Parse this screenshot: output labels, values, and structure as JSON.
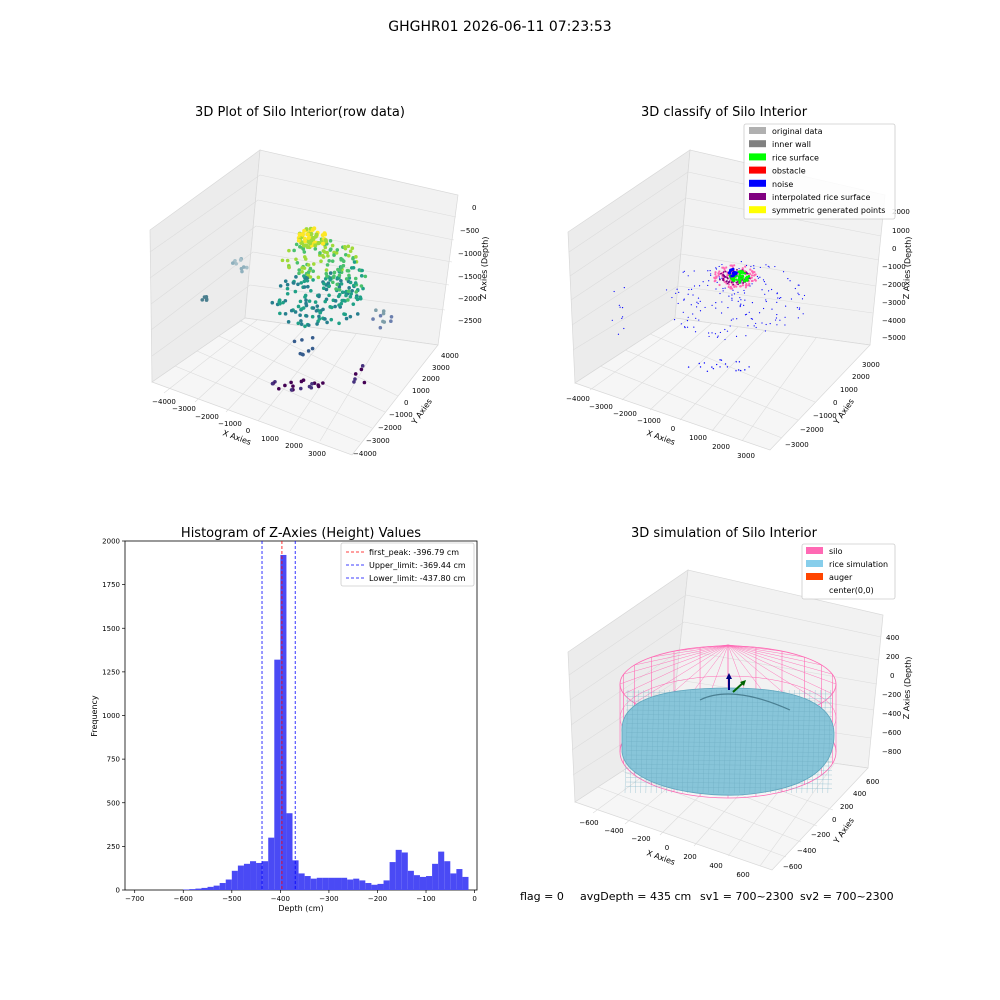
{
  "figure": {
    "suptitle": "GHGHR01 2026-06-11 07:23:53",
    "footer": {
      "flag": "flag = 0",
      "avg_depth": "avgDepth = 435 cm",
      "sv1": "sv1 = 700~2300",
      "sv2": "sv2 = 700~2300"
    }
  },
  "panels": {
    "raw": {
      "title": "3D Plot of Silo Interior(row data)",
      "xlabel": "X Axies",
      "ylabel": "Y Axies",
      "zlabel": "Z Axies (Depth)",
      "xticks": [
        "−4000",
        "−3000",
        "−2000",
        "−1000",
        "0",
        "1000",
        "2000",
        "3000"
      ],
      "yticks": [
        "−4000",
        "−3000",
        "−2000",
        "−1000",
        "0",
        "1000",
        "2000",
        "3000",
        "4000"
      ],
      "zticks": [
        "−2500",
        "−2000",
        "−1500",
        "−1000",
        "−500",
        "0"
      ]
    },
    "classify": {
      "title": "3D classify of Silo Interior",
      "xlabel": "X Axies",
      "ylabel": "Y Axies",
      "zlabel": "Z Axies (Depth)",
      "xticks": [
        "−4000",
        "−3000",
        "−2000",
        "−1000",
        "0",
        "1000",
        "2000",
        "3000"
      ],
      "yticks": [
        "−3000",
        "−2000",
        "−1000",
        "0",
        "1000",
        "2000",
        "3000"
      ],
      "zticks": [
        "−5000",
        "−4000",
        "−3000",
        "−2000",
        "−1000",
        "0",
        "1000",
        "2000"
      ],
      "legend": [
        {
          "label": "original data",
          "color": "#b0b0b0"
        },
        {
          "label": "inner wall",
          "color": "#808080"
        },
        {
          "label": "rice surface",
          "color": "#00ff00"
        },
        {
          "label": "obstacle",
          "color": "#ff0000"
        },
        {
          "label": "noise",
          "color": "#0000ff"
        },
        {
          "label": "interpolated rice surface",
          "color": "#800080"
        },
        {
          "label": "symmetric generated points",
          "color": "#ffff00"
        }
      ]
    },
    "histogram": {
      "title": "Histogram of Z-Axies (Height) Values",
      "xlabel": "Depth (cm)",
      "ylabel": "Frequency",
      "bar_color": "#4a4af5",
      "legend": [
        {
          "label": "first_peak: -396.79 cm",
          "color": "#ff0000"
        },
        {
          "label": "Upper_limit: -369.44 cm",
          "color": "#0000ff"
        },
        {
          "label": "Lower_limit: -437.80 cm",
          "color": "#0000ff"
        }
      ]
    },
    "simulation": {
      "title": "3D simulation of Silo Interior",
      "xlabel": "X Axies",
      "ylabel": "Y Axies",
      "zlabel": "Z Axies (Depth)",
      "xticks": [
        "−600",
        "−400",
        "−200",
        "0",
        "200",
        "400",
        "600"
      ],
      "yticks": [
        "−600",
        "−400",
        "−200",
        "0",
        "200",
        "400",
        "600"
      ],
      "zticks": [
        "−800",
        "−600",
        "−400",
        "−200",
        "0",
        "200",
        "400"
      ],
      "legend": [
        {
          "label": "silo",
          "color": "#ff69b4"
        },
        {
          "label": "rice simulation",
          "color": "#87ceeb"
        },
        {
          "label": "auger",
          "color": "#ff4500"
        },
        {
          "label": "center(0,0)",
          "color": "none"
        }
      ]
    }
  },
  "chart_data": [
    {
      "type": "scatter",
      "title": "3D Plot of Silo Interior(row data)",
      "xlabel": "X Axies",
      "ylabel": "Y Axies",
      "zlabel": "Z Axies (Depth)",
      "xlim": [
        -4000,
        3000
      ],
      "ylim": [
        -4000,
        4000
      ],
      "zlim": [
        -2800,
        0
      ],
      "colormap": "viridis"
    },
    {
      "type": "scatter",
      "title": "3D classify of Silo Interior",
      "xlabel": "X Axies",
      "ylabel": "Y Axies",
      "zlabel": "Z Axies (Depth)",
      "xlim": [
        -4000,
        3000
      ],
      "ylim": [
        -3000,
        3000
      ],
      "zlim": [
        -5000,
        2000
      ],
      "series": [
        {
          "name": "original data"
        },
        {
          "name": "inner wall"
        },
        {
          "name": "rice surface"
        },
        {
          "name": "obstacle"
        },
        {
          "name": "noise"
        },
        {
          "name": "interpolated rice surface"
        },
        {
          "name": "symmetric generated points"
        }
      ]
    },
    {
      "type": "bar",
      "title": "Histogram of Z-Axies (Height) Values",
      "xlabel": "Depth (cm)",
      "ylabel": "Frequency",
      "xlim": [
        -720,
        5
      ],
      "ylim": [
        0,
        2000
      ],
      "xticks": [
        -700,
        -600,
        -500,
        -400,
        -300,
        -200,
        -100,
        0
      ],
      "yticks": [
        0,
        250,
        500,
        750,
        1000,
        1250,
        1500,
        1750,
        2000
      ],
      "bin_width": 12.5,
      "bins": [
        [
          -600,
          3
        ],
        [
          -587.5,
          5
        ],
        [
          -575,
          8
        ],
        [
          -562.5,
          12
        ],
        [
          -550,
          18
        ],
        [
          -537.5,
          25
        ],
        [
          -525,
          40
        ],
        [
          -512.5,
          60
        ],
        [
          -500,
          110
        ],
        [
          -487.5,
          140
        ],
        [
          -475,
          150
        ],
        [
          -462.5,
          165
        ],
        [
          -450,
          155
        ],
        [
          -437.5,
          165
        ],
        [
          -425,
          300
        ],
        [
          -412.5,
          1320
        ],
        [
          -400,
          1920
        ],
        [
          -387.5,
          440
        ],
        [
          -375,
          170
        ],
        [
          -362.5,
          95
        ],
        [
          -350,
          80
        ],
        [
          -337.5,
          65
        ],
        [
          -325,
          70
        ],
        [
          -312.5,
          70
        ],
        [
          -300,
          70
        ],
        [
          -287.5,
          70
        ],
        [
          -275,
          70
        ],
        [
          -262.5,
          60
        ],
        [
          -250,
          65
        ],
        [
          -237.5,
          55
        ],
        [
          -225,
          40
        ],
        [
          -212.5,
          30
        ],
        [
          -200,
          35
        ],
        [
          -187.5,
          55
        ],
        [
          -175,
          160
        ],
        [
          -162.5,
          230
        ],
        [
          -150,
          215
        ],
        [
          -137.5,
          110
        ],
        [
          -125,
          85
        ],
        [
          -112.5,
          75
        ],
        [
          -100,
          80
        ],
        [
          -87.5,
          150
        ],
        [
          -75,
          220
        ],
        [
          -62.5,
          165
        ],
        [
          -50,
          95
        ],
        [
          -37.5,
          120
        ],
        [
          -25,
          75
        ]
      ],
      "vlines": [
        {
          "name": "first_peak",
          "x": -396.79,
          "color": "#ff0000"
        },
        {
          "name": "Upper_limit",
          "x": -369.44,
          "color": "#0000ff"
        },
        {
          "name": "Lower_limit",
          "x": -437.8,
          "color": "#0000ff"
        }
      ],
      "legend_position": "top-right"
    },
    {
      "type": "area",
      "title": "3D simulation of Silo Interior",
      "xlabel": "X Axies",
      "ylabel": "Y Axies",
      "zlabel": "Z Axies (Depth)",
      "xlim": [
        -700,
        700
      ],
      "ylim": [
        -700,
        700
      ],
      "zlim": [
        -900,
        500
      ],
      "series": [
        {
          "name": "silo"
        },
        {
          "name": "rice simulation"
        },
        {
          "name": "auger"
        },
        {
          "name": "center(0,0)"
        }
      ]
    }
  ]
}
